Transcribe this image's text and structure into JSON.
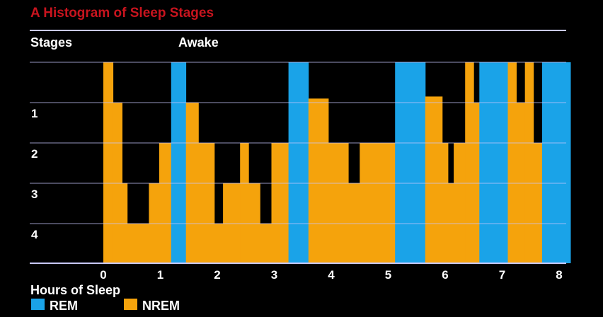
{
  "chart_data": {
    "type": "bar",
    "title": "A Histogram of Sleep Stages",
    "ylabel": "Stages",
    "top_label": "Awake",
    "xlabel": "Hours of Sleep",
    "xlim": [
      0,
      8
    ],
    "x_ticks": [
      "0",
      "1",
      "2",
      "3",
      "4",
      "5",
      "6",
      "7",
      "8"
    ],
    "y_ticks": [
      "1",
      "2",
      "3",
      "4"
    ],
    "y_tick_values": [
      1,
      2,
      3,
      4
    ],
    "ylim": [
      0,
      5
    ],
    "grid": true,
    "legend": [
      {
        "name": "REM",
        "color": "#1aa3e8"
      },
      {
        "name": "NREM",
        "color": "#f5a30c"
      }
    ],
    "colors": {
      "rem": "#1aa3e8",
      "nrem": "#f5a30c",
      "grid": "#c8c8ff",
      "title": "#c8141e"
    },
    "segments": [
      {
        "stage": "NREM",
        "x0": 0.0,
        "x1": 0.17,
        "depth": 0.0
      },
      {
        "stage": "NREM",
        "x0": 0.17,
        "x1": 0.33,
        "depth": 1.0
      },
      {
        "stage": "NREM",
        "x0": 0.33,
        "x1": 0.42,
        "depth": 3.0
      },
      {
        "stage": "NREM",
        "x0": 0.42,
        "x1": 0.8,
        "depth": 4.0
      },
      {
        "stage": "NREM",
        "x0": 0.8,
        "x1": 0.98,
        "depth": 3.0
      },
      {
        "stage": "NREM",
        "x0": 0.98,
        "x1": 1.19,
        "depth": 2.0
      },
      {
        "stage": "REM",
        "x0": 1.19,
        "x1": 1.45,
        "depth": 0.0
      },
      {
        "stage": "NREM",
        "x0": 1.45,
        "x1": 1.67,
        "depth": 1.0
      },
      {
        "stage": "NREM",
        "x0": 1.67,
        "x1": 1.95,
        "depth": 2.0
      },
      {
        "stage": "NREM",
        "x0": 1.95,
        "x1": 2.1,
        "depth": 4.0
      },
      {
        "stage": "NREM",
        "x0": 2.1,
        "x1": 2.4,
        "depth": 3.0
      },
      {
        "stage": "NREM",
        "x0": 2.4,
        "x1": 2.55,
        "depth": 2.0
      },
      {
        "stage": "NREM",
        "x0": 2.55,
        "x1": 2.75,
        "depth": 3.0
      },
      {
        "stage": "NREM",
        "x0": 2.75,
        "x1": 2.95,
        "depth": 4.0
      },
      {
        "stage": "NREM",
        "x0": 2.95,
        "x1": 3.25,
        "depth": 2.0
      },
      {
        "stage": "REM",
        "x0": 3.25,
        "x1": 3.6,
        "depth": 0.0
      },
      {
        "stage": "NREM",
        "x0": 3.6,
        "x1": 3.95,
        "depth": 0.9
      },
      {
        "stage": "NREM",
        "x0": 3.95,
        "x1": 4.3,
        "depth": 2.0
      },
      {
        "stage": "NREM",
        "x0": 4.3,
        "x1": 4.5,
        "depth": 3.0
      },
      {
        "stage": "NREM",
        "x0": 4.5,
        "x1": 5.12,
        "depth": 2.0
      },
      {
        "stage": "REM",
        "x0": 5.12,
        "x1": 5.65,
        "depth": 0.0
      },
      {
        "stage": "NREM",
        "x0": 5.65,
        "x1": 5.95,
        "depth": 0.85
      },
      {
        "stage": "NREM",
        "x0": 5.95,
        "x1": 6.05,
        "depth": 2.0
      },
      {
        "stage": "NREM",
        "x0": 6.05,
        "x1": 6.15,
        "depth": 3.0
      },
      {
        "stage": "NREM",
        "x0": 6.15,
        "x1": 6.35,
        "depth": 2.0
      },
      {
        "stage": "NREM",
        "x0": 6.35,
        "x1": 6.5,
        "depth": 0.0
      },
      {
        "stage": "NREM",
        "x0": 6.5,
        "x1": 6.6,
        "depth": 1.0
      },
      {
        "stage": "REM",
        "x0": 6.6,
        "x1": 7.1,
        "depth": 0.0
      },
      {
        "stage": "NREM",
        "x0": 7.1,
        "x1": 7.25,
        "depth": 0.0
      },
      {
        "stage": "NREM",
        "x0": 7.25,
        "x1": 7.4,
        "depth": 1.0
      },
      {
        "stage": "NREM",
        "x0": 7.4,
        "x1": 7.55,
        "depth": 0.0
      },
      {
        "stage": "NREM",
        "x0": 7.55,
        "x1": 7.7,
        "depth": 2.0
      },
      {
        "stage": "REM",
        "x0": 7.7,
        "x1": 8.2,
        "depth": 0.0
      }
    ]
  }
}
